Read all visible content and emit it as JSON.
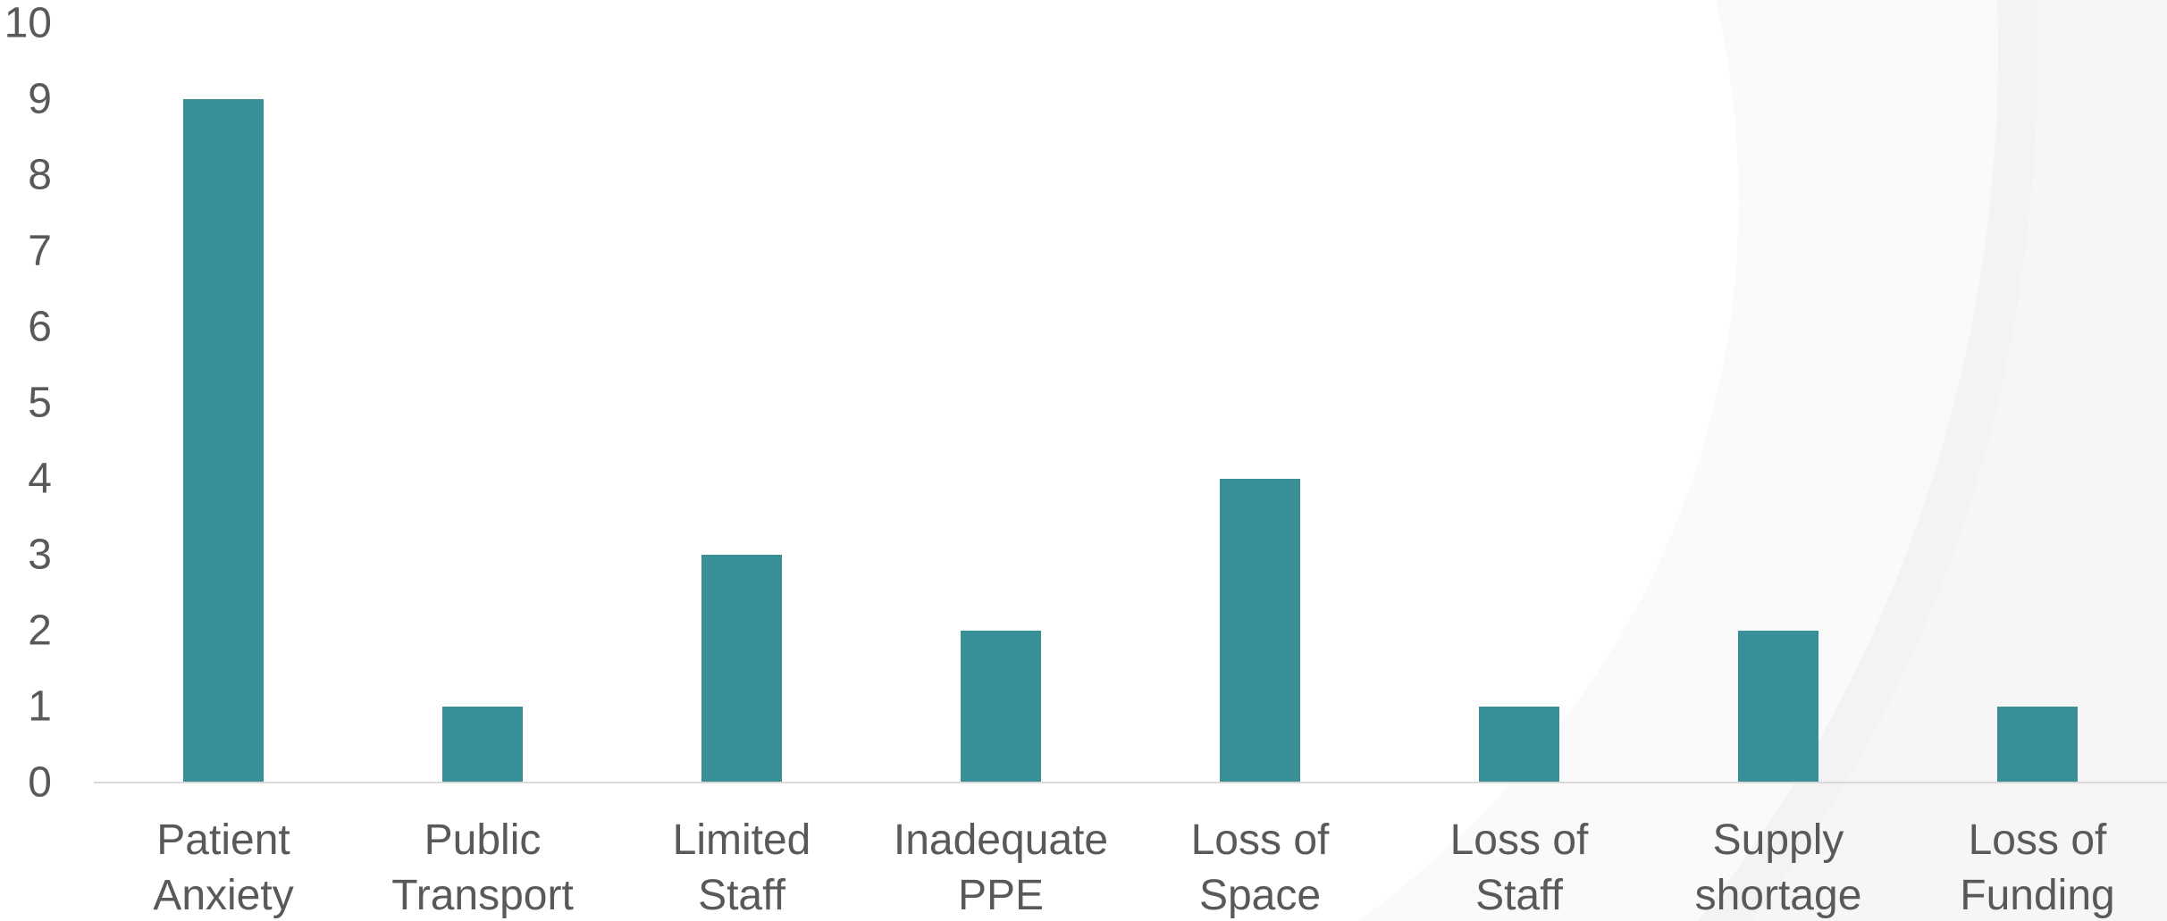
{
  "chart_data": {
    "type": "bar",
    "title": "",
    "xlabel": "",
    "ylabel": "",
    "categories": [
      [
        "Patient",
        "Anxiety"
      ],
      [
        "Public",
        "Transport"
      ],
      [
        "Limited",
        "Staff"
      ],
      [
        "Inadequate",
        "PPE"
      ],
      [
        "Loss of",
        "Space"
      ],
      [
        "Loss of",
        "Staff"
      ],
      [
        "Supply",
        "shortage"
      ],
      [
        "Loss of",
        "Funding"
      ]
    ],
    "values": [
      9,
      1,
      3,
      2,
      4,
      1,
      2,
      1
    ],
    "ylim": [
      0,
      10
    ],
    "yticks": [
      "0",
      "1",
      "2",
      "3",
      "4",
      "5",
      "6",
      "7",
      "8",
      "9",
      "10"
    ],
    "grid": false,
    "legend": "none",
    "bar_color": "#388f97",
    "axis_color": "#d9d9d9",
    "text_color": "#595959"
  }
}
